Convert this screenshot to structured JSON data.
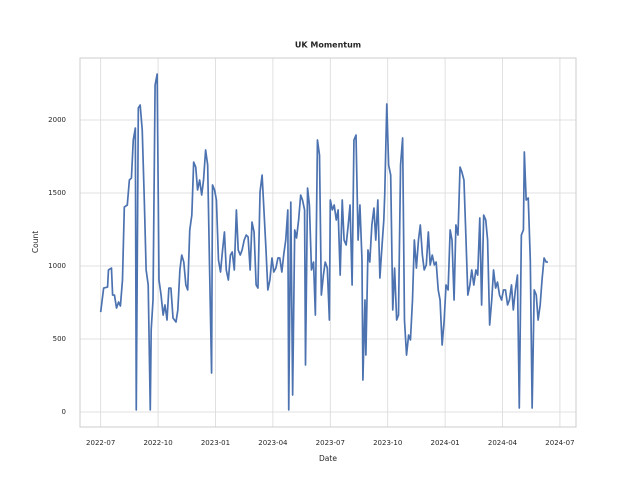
{
  "chart_data": {
    "type": "line",
    "title": "UK Momentum",
    "xlabel": "Date",
    "ylabel": "Count",
    "color": "#4c72b0",
    "grid": true,
    "xlim": [
      2022.41,
      2024.57
    ],
    "ylim": [
      -103,
      2425
    ],
    "xticks": [
      {
        "value": 2022.5,
        "label": "2022-07"
      },
      {
        "value": 2022.75,
        "label": "2022-10"
      },
      {
        "value": 2023.0,
        "label": "2023-01"
      },
      {
        "value": 2023.25,
        "label": "2023-04"
      },
      {
        "value": 2023.5,
        "label": "2023-07"
      },
      {
        "value": 2023.75,
        "label": "2023-10"
      },
      {
        "value": 2024.0,
        "label": "2024-01"
      },
      {
        "value": 2024.25,
        "label": "2024-04"
      },
      {
        "value": 2024.5,
        "label": "2024-07"
      }
    ],
    "yticks": [
      0,
      500,
      1000,
      1500,
      2000
    ],
    "x": [
      2022.5,
      2022.513,
      2022.53,
      2022.534,
      2022.547,
      2022.552,
      2022.56,
      2022.569,
      2022.578,
      2022.586,
      2022.595,
      2022.603,
      2022.616,
      2022.625,
      2022.634,
      2022.642,
      2022.651,
      2022.655,
      2022.664,
      2022.672,
      2022.681,
      2022.69,
      2022.698,
      2022.707,
      2022.716,
      2022.72,
      2022.728,
      2022.737,
      2022.746,
      2022.754,
      2022.763,
      2022.772,
      2022.78,
      2022.789,
      2022.797,
      2022.806,
      2022.815,
      2022.828,
      2022.836,
      2022.845,
      2022.853,
      2022.862,
      2022.871,
      2022.879,
      2022.888,
      2022.897,
      2022.905,
      2022.914,
      2022.922,
      2022.931,
      2022.94,
      2022.948,
      2022.957,
      2022.966,
      2022.974,
      2022.983,
      2022.987,
      2022.996,
      2023.004,
      2023.013,
      2023.022,
      2023.03,
      2023.039,
      2023.047,
      2023.056,
      2023.065,
      2023.073,
      2023.082,
      2023.091,
      2023.099,
      2023.108,
      2023.116,
      2023.125,
      2023.134,
      2023.142,
      2023.151,
      2023.159,
      2023.168,
      2023.177,
      2023.185,
      2023.194,
      2023.203,
      2023.211,
      2023.22,
      2023.228,
      2023.237,
      2023.246,
      2023.254,
      2023.263,
      2023.272,
      2023.28,
      2023.289,
      2023.297,
      2023.306,
      2023.315,
      2023.319,
      2023.328,
      2023.336,
      2023.345,
      2023.353,
      2023.362,
      2023.371,
      2023.379,
      2023.388,
      2023.392,
      2023.401,
      2023.409,
      2023.418,
      2023.427,
      2023.435,
      2023.444,
      2023.453,
      2023.461,
      2023.47,
      2023.478,
      2023.487,
      2023.496,
      2023.5,
      2023.509,
      2023.517,
      2023.526,
      2023.534,
      2023.543,
      2023.552,
      2023.56,
      2023.569,
      2023.578,
      2023.586,
      2023.595,
      2023.603,
      2023.612,
      2023.621,
      2023.629,
      2023.638,
      2023.642,
      2023.651,
      2023.655,
      2023.664,
      2023.672,
      2023.681,
      2023.69,
      2023.698,
      2023.707,
      2023.716,
      2023.724,
      2023.733,
      2023.737,
      2023.746,
      2023.754,
      2023.763,
      2023.772,
      2023.78,
      2023.789,
      2023.797,
      2023.806,
      2023.815,
      2023.823,
      2023.832,
      2023.841,
      2023.849,
      2023.858,
      2023.866,
      2023.875,
      2023.884,
      2023.892,
      2023.901,
      2023.909,
      2023.918,
      2023.927,
      2023.935,
      2023.944,
      2023.953,
      2023.961,
      2023.97,
      2023.978,
      2023.987,
      2023.996,
      2024.004,
      2024.013,
      2024.022,
      2024.03,
      2024.039,
      2024.047,
      2024.056,
      2024.065,
      2024.073,
      2024.082,
      2024.091,
      2024.099,
      2024.108,
      2024.116,
      2024.125,
      2024.134,
      2024.142,
      2024.151,
      2024.159,
      2024.168,
      2024.177,
      2024.185,
      2024.194,
      2024.203,
      2024.211,
      2024.22,
      2024.228,
      2024.237,
      2024.246,
      2024.254,
      2024.263,
      2024.272,
      2024.28,
      2024.289,
      2024.297,
      2024.306,
      2024.315,
      2024.323,
      2024.332,
      2024.341,
      2024.345,
      2024.353,
      2024.362,
      2024.371,
      2024.379,
      2024.388,
      2024.397,
      2024.405,
      2024.414,
      2024.422,
      2024.431,
      2024.44,
      2024.448
    ],
    "values": [
      684,
      849,
      856,
      973,
      986,
      801,
      801,
      712,
      753,
      726,
      904,
      1404,
      1418,
      1589,
      1603,
      1863,
      1945,
      14,
      2082,
      2103,
      1932,
      1452,
      973,
      870,
      14,
      562,
      767,
      2240,
      2315,
      904,
      801,
      664,
      733,
      630,
      849,
      849,
      644,
      616,
      699,
      973,
      1075,
      1027,
      870,
      836,
      1247,
      1349,
      1712,
      1678,
      1521,
      1589,
      1486,
      1589,
      1795,
      1692,
      1007,
      267,
      1555,
      1521,
      1452,
      1041,
      959,
      1096,
      1233,
      973,
      904,
      1075,
      1096,
      973,
      1384,
      1110,
      1075,
      1110,
      1178,
      1212,
      1199,
      973,
      1301,
      1233,
      870,
      849,
      1507,
      1623,
      1384,
      1110,
      836,
      904,
      1055,
      959,
      986,
      1055,
      1055,
      959,
      1075,
      1178,
      1384,
      14,
      1438,
      116,
      1247,
      1192,
      1315,
      1486,
      1452,
      1384,
      322,
      1534,
      1418,
      973,
      1027,
      664,
      1863,
      1760,
      801,
      938,
      1027,
      986,
      630,
      1452,
      1384,
      1418,
      1315,
      1384,
      938,
      1452,
      1178,
      1144,
      1281,
      1418,
      870,
      1863,
      1897,
      1178,
      1418,
      1041,
      219,
      767,
      390,
      1110,
      1027,
      1281,
      1397,
      1178,
      1452,
      918,
      1110,
      1315,
      1486,
      2110,
      1692,
      1623,
      699,
      986,
      630,
      664,
      1692,
      1877,
      630,
      390,
      527,
      493,
      767,
      1178,
      986,
      1178,
      1281,
      1075,
      973,
      1007,
      1233,
      1007,
      1075,
      1007,
      1027,
      836,
      767,
      459,
      630,
      870,
      836,
      1247,
      1178,
      767,
      1281,
      1212,
      1678,
      1644,
      1589,
      1178,
      801,
      870,
      973,
      870,
      973,
      938,
      1329,
      733,
      1349,
      1315,
      1178,
      596,
      767,
      973,
      849,
      890,
      801,
      767,
      836,
      836,
      733,
      767,
      870,
      699,
      836,
      938,
      27,
      1212,
      1247,
      1781,
      1452,
      1466,
      1041,
      27,
      836,
      801,
      630,
      733,
      904,
      1055,
      1027,
      1027
    ]
  }
}
